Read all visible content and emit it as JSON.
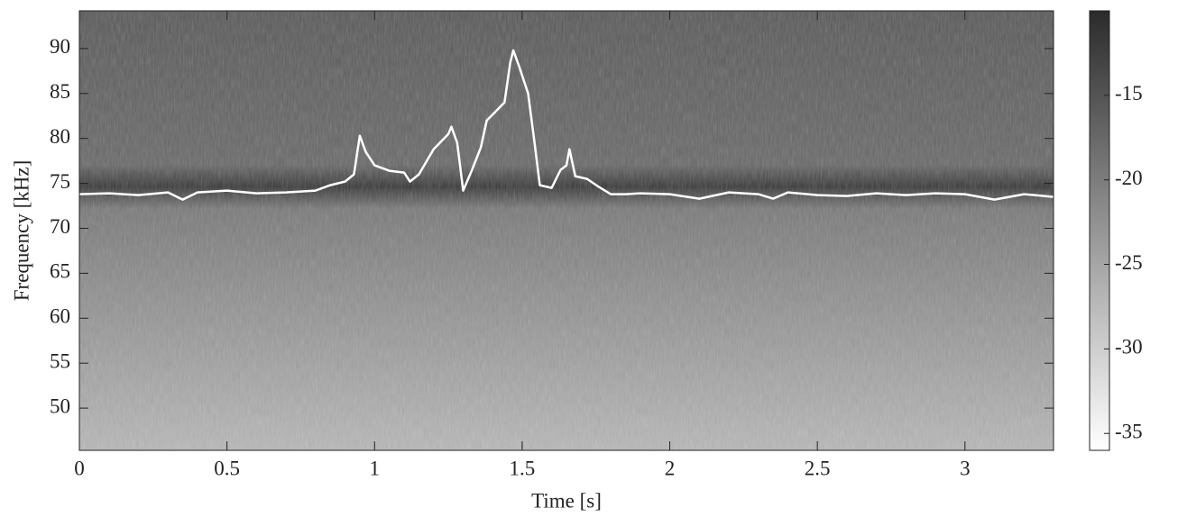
{
  "chart_data": {
    "type": "line",
    "xlabel": "Time [s]",
    "ylabel": "Frequency [kHz]",
    "x": [
      0,
      0.1,
      0.2,
      0.3,
      0.35,
      0.4,
      0.5,
      0.6,
      0.7,
      0.8,
      0.85,
      0.9,
      0.93,
      0.95,
      0.97,
      1.0,
      1.05,
      1.1,
      1.12,
      1.15,
      1.2,
      1.25,
      1.26,
      1.28,
      1.3,
      1.33,
      1.36,
      1.38,
      1.41,
      1.44,
      1.46,
      1.47,
      1.49,
      1.52,
      1.54,
      1.56,
      1.6,
      1.63,
      1.65,
      1.66,
      1.68,
      1.72,
      1.76,
      1.8,
      1.85,
      1.9,
      2.0,
      2.1,
      2.2,
      2.3,
      2.35,
      2.4,
      2.5,
      2.6,
      2.7,
      2.8,
      2.9,
      3.0,
      3.1,
      3.2,
      3.3
    ],
    "values": [
      73.8,
      73.9,
      73.7,
      74,
      73.2,
      74,
      74.2,
      73.9,
      74,
      74.2,
      74.8,
      75.2,
      76,
      80.3,
      78.5,
      77,
      76.4,
      76.2,
      75.2,
      76,
      78.8,
      80.5,
      81.3,
      79.5,
      74.2,
      76.5,
      79,
      82,
      83,
      84,
      88.5,
      89.8,
      88,
      85,
      80,
      74.8,
      74.5,
      76.5,
      77,
      78.8,
      75.8,
      75.5,
      74.6,
      73.8,
      73.8,
      73.9,
      73.8,
      73.3,
      74,
      73.8,
      73.3,
      74,
      73.7,
      73.6,
      73.9,
      73.7,
      73.9,
      73.8,
      73.2,
      73.8,
      73.5
    ],
    "color": "#ffffff",
    "xlim": [
      0,
      3.3
    ],
    "xticks": [
      0,
      0.5,
      1,
      1.5,
      2,
      2.5,
      3
    ],
    "ylim": [
      45.3,
      94.2
    ],
    "yticks": [
      50,
      55,
      60,
      65,
      70,
      75,
      80,
      85,
      90
    ],
    "colorbar": {
      "clim": [
        -36,
        -10
      ],
      "ticks": [
        -35,
        -30,
        -25,
        -20,
        -15
      ],
      "colors": [
        "#ffffff",
        "#2b2b2b"
      ]
    }
  }
}
